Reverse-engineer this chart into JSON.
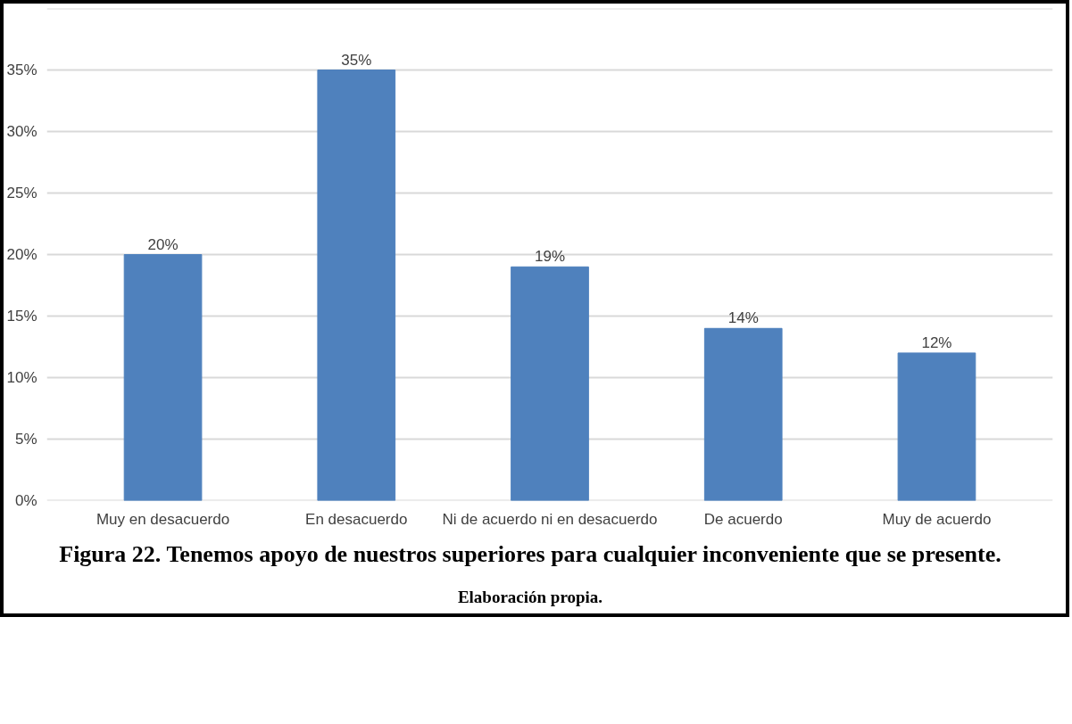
{
  "chart_data": {
    "type": "bar",
    "title": "Figura 22. Tenemos apoyo de nuestros superiores para cualquier inconveniente que se presente.",
    "categories": [
      "Muy en desacuerdo",
      "En desacuerdo",
      "Ni de acuerdo ni en desacuerdo",
      "De acuerdo",
      "Muy de acuerdo"
    ],
    "values": [
      20,
      35,
      19,
      14,
      12
    ],
    "value_labels": [
      "20%",
      "35%",
      "19%",
      "14%",
      "12%"
    ],
    "color": "#4f81bd",
    "ylim": [
      0,
      40
    ],
    "yticks": [
      {
        "value": 0,
        "label": "0%"
      },
      {
        "value": 5,
        "label": "5%"
      },
      {
        "value": 10,
        "label": "10%"
      },
      {
        "value": 15,
        "label": "15%"
      },
      {
        "value": 20,
        "label": "20%"
      },
      {
        "value": 25,
        "label": "25%"
      },
      {
        "value": 30,
        "label": "30%"
      },
      {
        "value": 35,
        "label": "35%"
      },
      {
        "value": 40,
        "label": null
      }
    ],
    "grid": "y",
    "annotations": [
      "Elaboración propia."
    ]
  }
}
